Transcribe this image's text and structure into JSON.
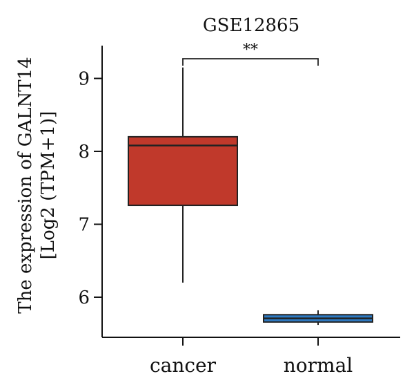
{
  "chart_data": {
    "type": "box",
    "title": "GSE12865",
    "ylabel_line1": "The expression of GALNT14",
    "ylabel_line2": "[Log2 (TPM+1)]",
    "ylim": [
      5.45,
      9.45
    ],
    "yticks": [
      6,
      7,
      8,
      9
    ],
    "categories": [
      "cancer",
      "normal"
    ],
    "boxes": [
      {
        "category": "cancer",
        "whisker_low": 6.2,
        "q1": 7.26,
        "median": 8.08,
        "q3": 8.2,
        "whisker_high": 9.15,
        "color": "#c0392b"
      },
      {
        "category": "normal",
        "whisker_low": 5.62,
        "q1": 5.66,
        "median": 5.71,
        "q3": 5.76,
        "whisker_high": 5.82,
        "color": "#2e7bc4"
      }
    ],
    "significance": {
      "label": "**",
      "between": [
        "cancer",
        "normal"
      ],
      "y": 9.27
    }
  }
}
